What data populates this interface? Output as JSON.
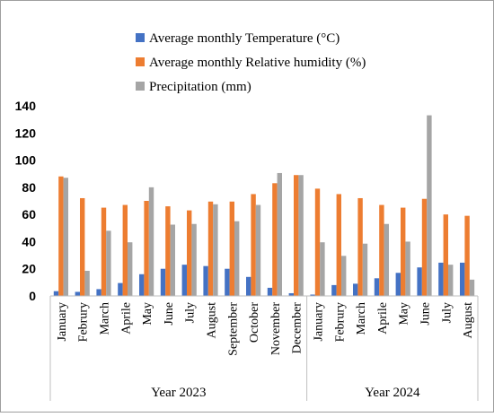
{
  "colors": {
    "temperature": "#4472C4",
    "humidity": "#ED7D31",
    "precipitation": "#A5A5A5",
    "axis": "#BFBFBF",
    "frame": "#9E9E9E"
  },
  "chart_data": {
    "type": "bar",
    "title": "",
    "xlabel": "",
    "ylabel": "",
    "ylim": [
      0,
      140
    ],
    "yticks": [
      0,
      20,
      40,
      60,
      80,
      100,
      120,
      140
    ],
    "grid": false,
    "legend_position": "top",
    "categories": [
      "January",
      "Februry",
      "March",
      "Aprile",
      "May",
      "June",
      "July",
      "August",
      "September",
      "October",
      "November",
      "December",
      "January",
      "Februry",
      "March",
      "Aprile",
      "May",
      "June",
      "July",
      "August"
    ],
    "groups": [
      {
        "label": "Year 2023",
        "start": 0,
        "count": 12
      },
      {
        "label": "Year 2024",
        "start": 12,
        "count": 8
      }
    ],
    "series": [
      {
        "name": "Average monthly Temperature (°C)",
        "color_key": "temperature",
        "values": [
          3.5,
          3,
          5,
          9.5,
          16,
          20,
          23,
          22,
          20,
          14,
          6,
          2,
          1,
          8,
          9,
          13,
          17,
          21,
          24.5,
          24.5
        ]
      },
      {
        "name": "Average monthly Relative humidity (%)",
        "color_key": "humidity",
        "values": [
          88,
          72,
          65,
          67,
          70,
          66,
          63,
          69.5,
          69.5,
          75,
          83,
          89,
          79,
          75,
          72,
          67,
          65,
          71.5,
          60,
          59
        ]
      },
      {
        "name": "Precipitation (mm)",
        "color_key": "precipitation",
        "values": [
          87,
          18.5,
          48,
          39.5,
          80,
          52.5,
          53,
          67.5,
          55,
          67,
          90.5,
          89,
          39.5,
          29.5,
          38.5,
          53,
          40,
          133,
          23,
          12
        ]
      }
    ]
  }
}
